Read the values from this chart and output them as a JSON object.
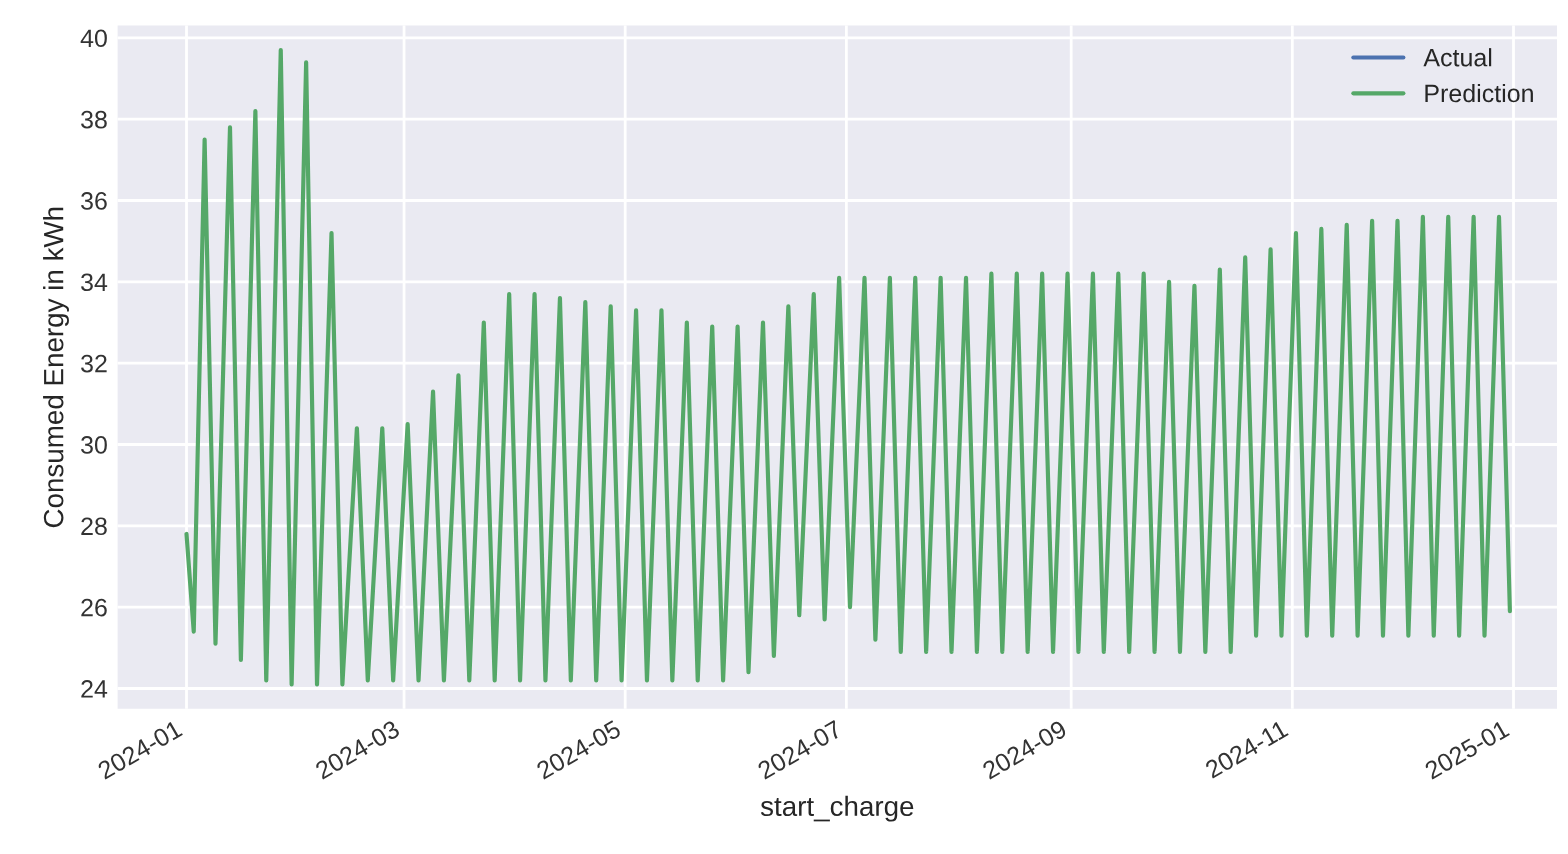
{
  "chart_data": {
    "type": "line",
    "xlabel": "start_charge",
    "ylabel": "Consumed Energy in kWh",
    "xlim": [
      "2023-12-13",
      "2025-01-13"
    ],
    "ylim": [
      23.5,
      40.3
    ],
    "xticks": [
      "2024-01",
      "2024-03",
      "2024-05",
      "2024-07",
      "2024-09",
      "2024-11",
      "2025-01"
    ],
    "yticks": [
      24,
      26,
      28,
      30,
      32,
      34,
      36,
      38,
      40
    ],
    "grid": true,
    "legend": "top right",
    "line_style": "solid",
    "marker": "none",
    "series": [
      {
        "name": "Actual",
        "color": "#4c72b0"
      },
      {
        "name": "Prediction",
        "color": "#55a868",
        "x": [
          "2024-01-01",
          "2024-01-03",
          "2024-01-06",
          "2024-01-09",
          "2024-01-13",
          "2024-01-16",
          "2024-01-20",
          "2024-01-23",
          "2024-01-27",
          "2024-01-30",
          "2024-02-03",
          "2024-02-06",
          "2024-02-10",
          "2024-02-13",
          "2024-02-17",
          "2024-02-20",
          "2024-02-24",
          "2024-02-27",
          "2024-03-02",
          "2024-03-05",
          "2024-03-09",
          "2024-03-12",
          "2024-03-16",
          "2024-03-19",
          "2024-03-23",
          "2024-03-26",
          "2024-03-30",
          "2024-04-02",
          "2024-04-06",
          "2024-04-09",
          "2024-04-13",
          "2024-04-16",
          "2024-04-20",
          "2024-04-23",
          "2024-04-27",
          "2024-04-30",
          "2024-05-04",
          "2024-05-07",
          "2024-05-11",
          "2024-05-14",
          "2024-05-18",
          "2024-05-21",
          "2024-05-25",
          "2024-05-28",
          "2024-06-01",
          "2024-06-04",
          "2024-06-08",
          "2024-06-11",
          "2024-06-15",
          "2024-06-18",
          "2024-06-22",
          "2024-06-25",
          "2024-06-29",
          "2024-07-02",
          "2024-07-06",
          "2024-07-09",
          "2024-07-13",
          "2024-07-16",
          "2024-07-20",
          "2024-07-23",
          "2024-07-27",
          "2024-07-30",
          "2024-08-03",
          "2024-08-06",
          "2024-08-10",
          "2024-08-13",
          "2024-08-17",
          "2024-08-20",
          "2024-08-24",
          "2024-08-27",
          "2024-08-31",
          "2024-09-03",
          "2024-09-07",
          "2024-09-10",
          "2024-09-14",
          "2024-09-17",
          "2024-09-21",
          "2024-09-24",
          "2024-09-28",
          "2024-10-01",
          "2024-10-05",
          "2024-10-08",
          "2024-10-12",
          "2024-10-15",
          "2024-10-19",
          "2024-10-22",
          "2024-10-26",
          "2024-10-29",
          "2024-11-02",
          "2024-11-05",
          "2024-11-09",
          "2024-11-12",
          "2024-11-16",
          "2024-11-19",
          "2024-11-23",
          "2024-11-26",
          "2024-11-30",
          "2024-12-03",
          "2024-12-07",
          "2024-12-10",
          "2024-12-14",
          "2024-12-17",
          "2024-12-21",
          "2024-12-24",
          "2024-12-28",
          "2024-12-31"
        ],
        "values": [
          27.8,
          25.4,
          37.5,
          25.1,
          37.8,
          24.7,
          38.2,
          24.2,
          39.7,
          24.1,
          39.4,
          24.1,
          35.2,
          24.1,
          30.4,
          24.2,
          30.4,
          24.2,
          30.5,
          24.2,
          31.3,
          24.2,
          31.7,
          24.2,
          33.0,
          24.2,
          33.7,
          24.2,
          33.7,
          24.2,
          33.6,
          24.2,
          33.5,
          24.2,
          33.4,
          24.2,
          33.3,
          24.2,
          33.3,
          24.2,
          33.0,
          24.2,
          32.9,
          24.2,
          32.9,
          24.4,
          33.0,
          24.8,
          33.4,
          25.8,
          33.7,
          25.7,
          34.1,
          26.0,
          34.1,
          25.2,
          34.1,
          24.9,
          34.1,
          24.9,
          34.1,
          24.9,
          34.1,
          24.9,
          34.2,
          24.9,
          34.2,
          24.9,
          34.2,
          24.9,
          34.2,
          24.9,
          34.2,
          24.9,
          34.2,
          24.9,
          34.2,
          24.9,
          34.0,
          24.9,
          33.9,
          24.9,
          34.3,
          24.9,
          34.6,
          25.3,
          34.8,
          25.3,
          35.2,
          25.3,
          35.3,
          25.3,
          35.4,
          25.3,
          35.5,
          25.3,
          35.5,
          25.3,
          35.6,
          25.3,
          35.6,
          25.3,
          35.6,
          25.3,
          35.6,
          25.9
        ]
      }
    ]
  }
}
